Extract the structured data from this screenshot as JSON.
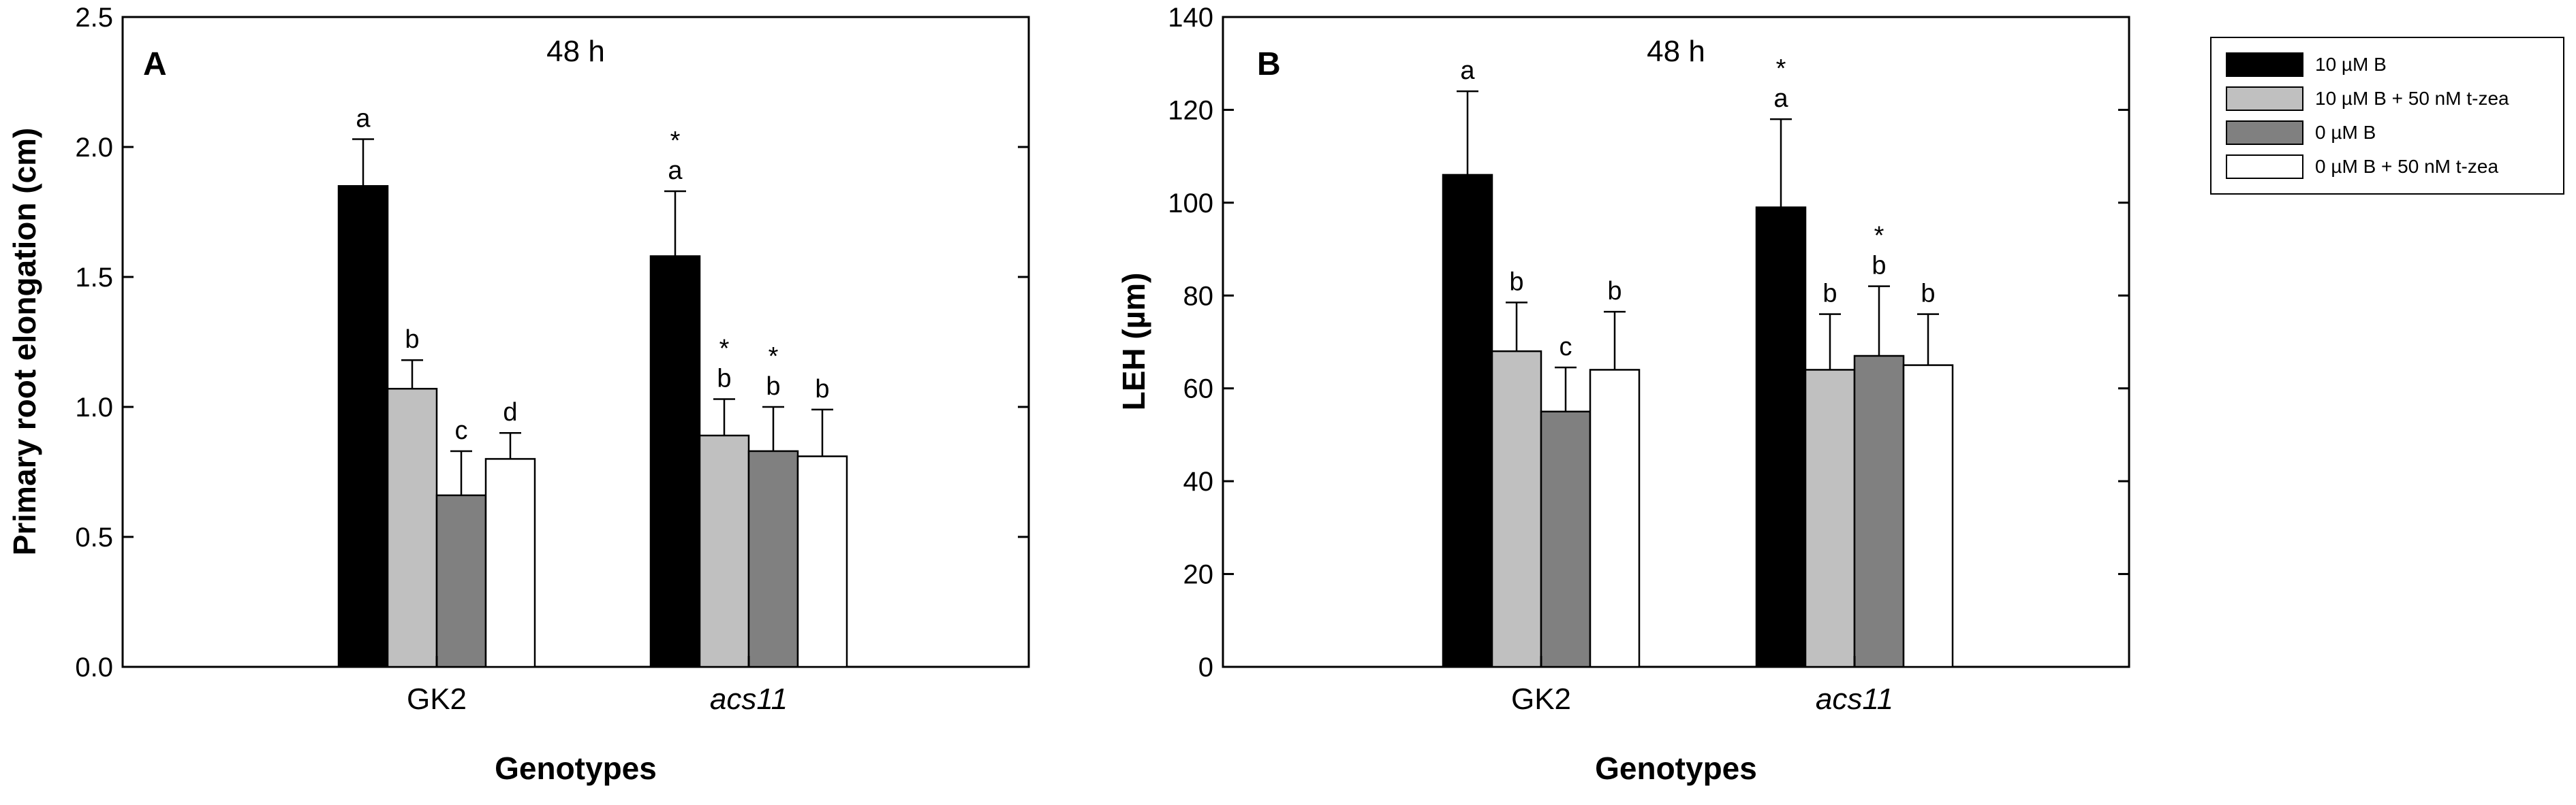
{
  "chart_data": [
    {
      "type": "bar",
      "panel": "A",
      "title": "48 h",
      "xlabel": "Genotypes",
      "ylabel": "Primary root elongation (cm)",
      "ylim": [
        0,
        2.5
      ],
      "yticks": [
        0.0,
        0.5,
        1.0,
        1.5,
        2.0,
        2.5
      ],
      "ytick_labels": [
        "0.0",
        "0.5",
        "1.0",
        "1.5",
        "2.0",
        "2.5"
      ],
      "categories": [
        "GK2",
        "acs11"
      ],
      "series": [
        {
          "name": "10 µM B",
          "values": [
            1.85,
            1.58
          ],
          "errors": [
            0.18,
            0.25
          ],
          "letters": [
            "a",
            "a"
          ],
          "stars": [
            false,
            true
          ]
        },
        {
          "name": "10 µM B + 50 nM t-zea",
          "values": [
            1.07,
            0.89
          ],
          "errors": [
            0.11,
            0.14
          ],
          "letters": [
            "b",
            "b"
          ],
          "stars": [
            false,
            true
          ]
        },
        {
          "name": "0 µM B",
          "values": [
            0.66,
            0.83
          ],
          "errors": [
            0.17,
            0.17
          ],
          "letters": [
            "c",
            "b"
          ],
          "stars": [
            false,
            true
          ]
        },
        {
          "name": "0 µM B + 50 nM t-zea",
          "values": [
            0.8,
            0.81
          ],
          "errors": [
            0.1,
            0.18
          ],
          "letters": [
            "d",
            "b"
          ],
          "stars": [
            false,
            false
          ]
        }
      ]
    },
    {
      "type": "bar",
      "panel": "B",
      "title": "48 h",
      "xlabel": "Genotypes",
      "ylabel": "LEH (µm)",
      "ylim": [
        0,
        140
      ],
      "yticks": [
        0,
        20,
        40,
        60,
        80,
        100,
        120,
        140
      ],
      "ytick_labels": [
        "0",
        "20",
        "40",
        "60",
        "80",
        "100",
        "120",
        "140"
      ],
      "categories": [
        "GK2",
        "acs11"
      ],
      "series": [
        {
          "name": "10 µM B",
          "values": [
            106,
            99
          ],
          "errors": [
            18,
            19
          ],
          "letters": [
            "a",
            "a"
          ],
          "stars": [
            false,
            true
          ]
        },
        {
          "name": "10 µM B + 50 nM t-zea",
          "values": [
            68,
            64
          ],
          "errors": [
            10.5,
            12
          ],
          "letters": [
            "b",
            "b"
          ],
          "stars": [
            false,
            false
          ]
        },
        {
          "name": "0 µM B",
          "values": [
            55,
            67
          ],
          "errors": [
            9.5,
            15
          ],
          "letters": [
            "c",
            "b"
          ],
          "stars": [
            false,
            true
          ]
        },
        {
          "name": "0 µM B + 50 nM t-zea",
          "values": [
            64,
            65
          ],
          "errors": [
            12.5,
            11
          ],
          "letters": [
            "b",
            "b"
          ],
          "stars": [
            false,
            false
          ]
        }
      ]
    }
  ],
  "legend": {
    "placement": "top-right",
    "items": [
      {
        "label": "10 µM B",
        "color": "#000000"
      },
      {
        "label": "10 µM B + 50 nM t-zea",
        "color": "#c0c0c0"
      },
      {
        "label": "0 µM B",
        "color": "#808080"
      },
      {
        "label": "0 µM B + 50 nM t-zea",
        "color": "#ffffff"
      }
    ]
  },
  "significance_marker": "*"
}
